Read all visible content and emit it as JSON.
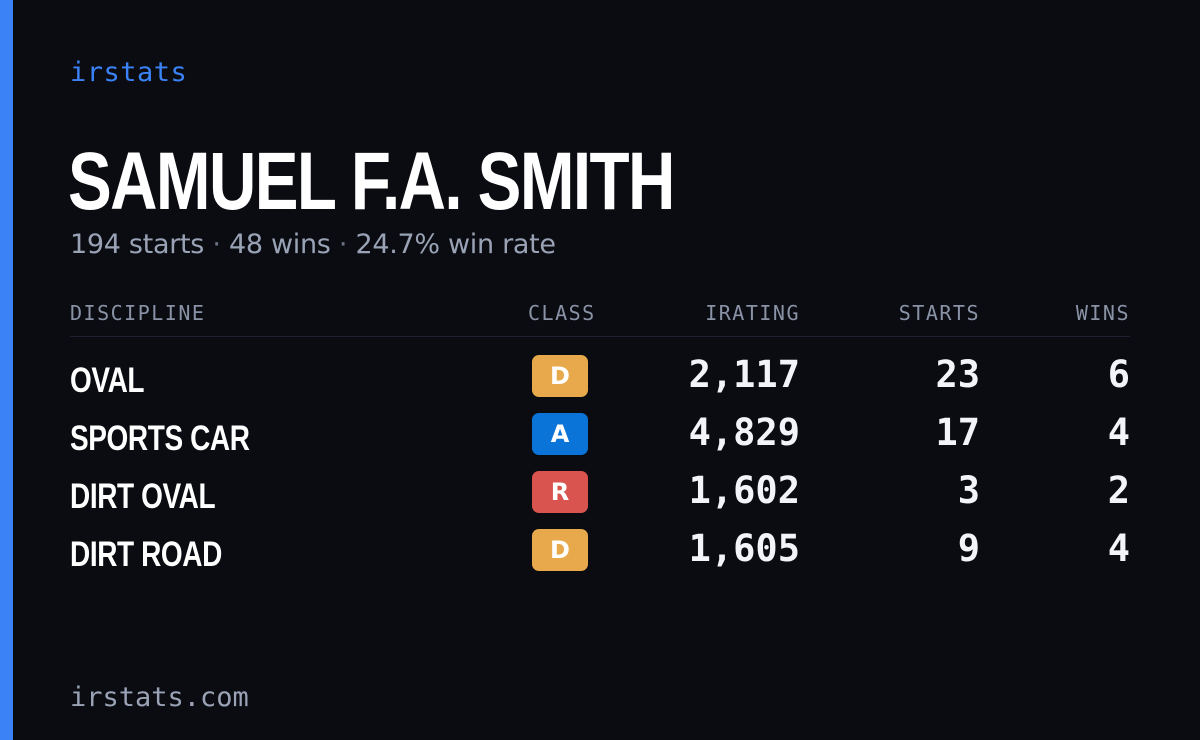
{
  "brand": "irstats",
  "driver": {
    "name": "SAMUEL F.A. SMITH",
    "starts_text": "194 starts",
    "wins_text": "48 wins",
    "win_rate_text": "24.7% win rate",
    "separator": "·"
  },
  "table": {
    "headers": {
      "discipline": "DISCIPLINE",
      "class": "CLASS",
      "irating": "IRATING",
      "starts": "STARTS",
      "wins": "WINS"
    },
    "rows": [
      {
        "discipline": "OVAL",
        "class": "D",
        "class_color": "#e8a94d",
        "irating": "2,117",
        "starts": "23",
        "wins": "6"
      },
      {
        "discipline": "SPORTS CAR",
        "class": "A",
        "class_color": "#0b74d9",
        "irating": "4,829",
        "starts": "17",
        "wins": "4"
      },
      {
        "discipline": "DIRT OVAL",
        "class": "R",
        "class_color": "#d9534f",
        "irating": "1,602",
        "starts": "3",
        "wins": "2"
      },
      {
        "discipline": "DIRT ROAD",
        "class": "D",
        "class_color": "#e8a94d",
        "irating": "1,605",
        "starts": "9",
        "wins": "4"
      }
    ]
  },
  "footer": {
    "url": "irstats.com"
  },
  "colors": {
    "background": "#0a0c12",
    "accent": "#3b82f6",
    "muted_text": "#9aa3b5"
  }
}
